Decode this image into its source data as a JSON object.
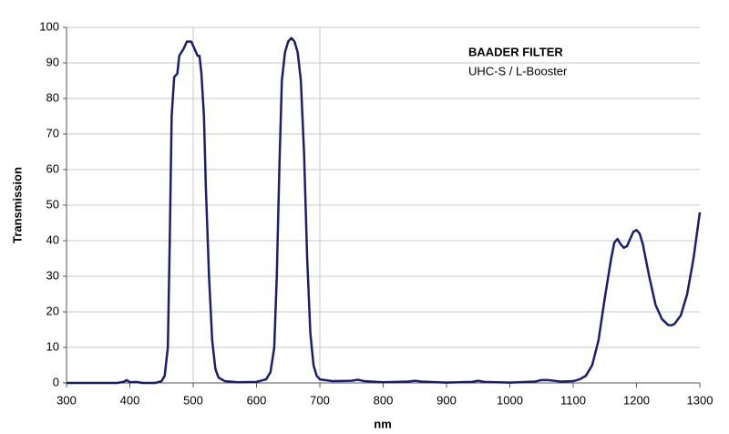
{
  "chart_data": {
    "type": "line",
    "title": "BAADER FILTER",
    "subtitle": "UHC-S / L-Booster",
    "x_label": "nm",
    "y_label": "Transmission",
    "xlim": [
      300,
      1300
    ],
    "xticks": [
      300,
      400,
      500,
      600,
      700,
      800,
      900,
      1000,
      1100,
      1200,
      1300
    ],
    "ylim": [
      0,
      100
    ],
    "yticks": [
      0,
      10,
      20,
      30,
      40,
      50,
      60,
      70,
      80,
      90,
      100
    ],
    "grid": true,
    "x_grid_lines": [
      500,
      700
    ],
    "x": [
      300,
      380,
      390,
      395,
      400,
      410,
      420,
      440,
      450,
      455,
      460,
      463,
      466,
      470,
      475,
      478,
      485,
      490,
      497,
      502,
      507,
      510,
      513,
      517,
      520,
      525,
      530,
      535,
      540,
      550,
      570,
      600,
      615,
      622,
      628,
      632,
      636,
      640,
      645,
      650,
      655,
      660,
      665,
      670,
      675,
      680,
      685,
      690,
      695,
      700,
      720,
      750,
      760,
      770,
      800,
      840,
      850,
      860,
      900,
      940,
      950,
      960,
      1000,
      1040,
      1050,
      1060,
      1080,
      1100,
      1110,
      1120,
      1130,
      1140,
      1150,
      1160,
      1165,
      1170,
      1175,
      1180,
      1185,
      1190,
      1195,
      1200,
      1205,
      1210,
      1220,
      1230,
      1240,
      1250,
      1255,
      1260,
      1270,
      1280,
      1290,
      1300
    ],
    "series": [
      {
        "name": "UHC-S / L-Booster",
        "color": "#1b1f6b",
        "values": [
          0,
          0,
          0.3,
          0.8,
          0.2,
          0.3,
          0,
          0,
          0.5,
          2,
          10,
          40,
          75,
          86,
          87,
          92,
          94,
          96,
          96,
          94,
          92,
          92,
          87,
          75,
          55,
          30,
          12,
          4,
          1.5,
          0.5,
          0.2,
          0.3,
          1,
          3,
          10,
          30,
          60,
          85,
          93,
          96,
          97,
          96,
          93,
          85,
          65,
          35,
          14,
          5,
          2,
          1,
          0.5,
          0.6,
          0.9,
          0.5,
          0.2,
          0.4,
          0.6,
          0.4,
          0.1,
          0.3,
          0.6,
          0.3,
          0.1,
          0.4,
          0.8,
          0.8,
          0.4,
          0.5,
          1,
          2,
          5,
          12,
          24,
          35,
          39.5,
          40.5,
          39,
          38,
          38.5,
          40.5,
          42.5,
          43,
          42,
          39,
          30,
          22,
          18,
          16.3,
          16.2,
          16.6,
          19,
          25,
          35,
          48
        ]
      }
    ]
  }
}
